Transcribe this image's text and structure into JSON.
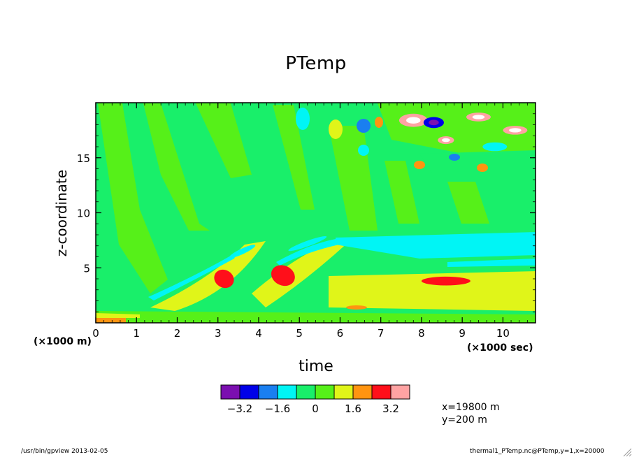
{
  "chart_data": {
    "type": "heatmap",
    "title": "PTemp",
    "xlabel": "time",
    "ylabel": "z-coordinate",
    "x_unit_label": "(×1000 sec)",
    "y_unit_label": "(×1000 m)",
    "xlim": [
      0,
      10.8
    ],
    "ylim": [
      0,
      20
    ],
    "x_ticks": [
      0,
      1,
      2,
      3,
      4,
      5,
      6,
      7,
      8,
      9,
      10
    ],
    "y_ticks": [
      5,
      10,
      15
    ],
    "colorbar": {
      "colors": [
        "#7b0fb0",
        "#0000e8",
        "#1a7ff0",
        "#00f5f5",
        "#19ef6a",
        "#56f019",
        "#e0f519",
        "#ff9410",
        "#ff0f1a",
        "#ffa3a3"
      ],
      "tick_labels": [
        "−3.2",
        "−1.6",
        "0",
        "1.6",
        "3.2"
      ],
      "boundaries": [
        -4.0,
        -3.2,
        -2.4,
        -1.6,
        -0.8,
        0,
        0.8,
        1.6,
        2.4,
        3.2,
        4.0
      ]
    },
    "features": [
      {
        "kind": "ellipse",
        "x": 3.6,
        "y": 6.5,
        "rx": 0.35,
        "ry": 0.25,
        "rot": -25,
        "level": "-1.6"
      },
      {
        "kind": "ellipse",
        "x": 5.2,
        "y": 7.2,
        "rx": 0.5,
        "ry": 0.25,
        "rot": -20,
        "level": "-1.6"
      },
      {
        "kind": "ellipse",
        "x": 3.15,
        "y": 4.0,
        "rx": 0.25,
        "ry": 0.8,
        "rot": 30,
        "level": "2.4"
      },
      {
        "kind": "ellipse",
        "x": 4.6,
        "y": 4.3,
        "rx": 0.3,
        "ry": 0.9,
        "rot": 25,
        "level": "2.4"
      },
      {
        "kind": "ellipse",
        "x": 8.5,
        "y": 7.0,
        "rx": 0.9,
        "ry": 0.35,
        "rot": 0,
        "level": "-1.6"
      },
      {
        "kind": "ellipse",
        "x": 8.6,
        "y": 3.8,
        "rx": 0.6,
        "ry": 0.4,
        "rot": 0,
        "level": "2.4"
      },
      {
        "kind": "ellipse",
        "x": 7.8,
        "y": 18.4,
        "rx": 0.35,
        "ry": 0.6,
        "rot": 0,
        "level": "3.2"
      },
      {
        "kind": "ellipse",
        "x": 8.3,
        "y": 18.2,
        "rx": 0.25,
        "ry": 0.5,
        "rot": 0,
        "level": "-3.2"
      },
      {
        "kind": "ellipse",
        "x": 8.6,
        "y": 16.6,
        "rx": 0.2,
        "ry": 0.35,
        "rot": 0,
        "level": "3.2"
      },
      {
        "kind": "ellipse",
        "x": 9.4,
        "y": 18.7,
        "rx": 0.3,
        "ry": 0.4,
        "rot": 0,
        "level": "3.2"
      },
      {
        "kind": "ellipse",
        "x": 10.3,
        "y": 17.5,
        "rx": 0.3,
        "ry": 0.4,
        "rot": 0,
        "level": "3.2"
      },
      {
        "kind": "ellipse",
        "x": 9.8,
        "y": 16.0,
        "rx": 0.3,
        "ry": 0.4,
        "rot": 0,
        "level": "-1.6"
      }
    ]
  },
  "info": {
    "x_cut": "x=19800 m",
    "y_cut": "y=200 m"
  },
  "footer": {
    "program": "/usr/bin/gpview  2013-02-05",
    "source": "thermal1_PTemp.nc@PTemp,y=1,x=20000"
  }
}
